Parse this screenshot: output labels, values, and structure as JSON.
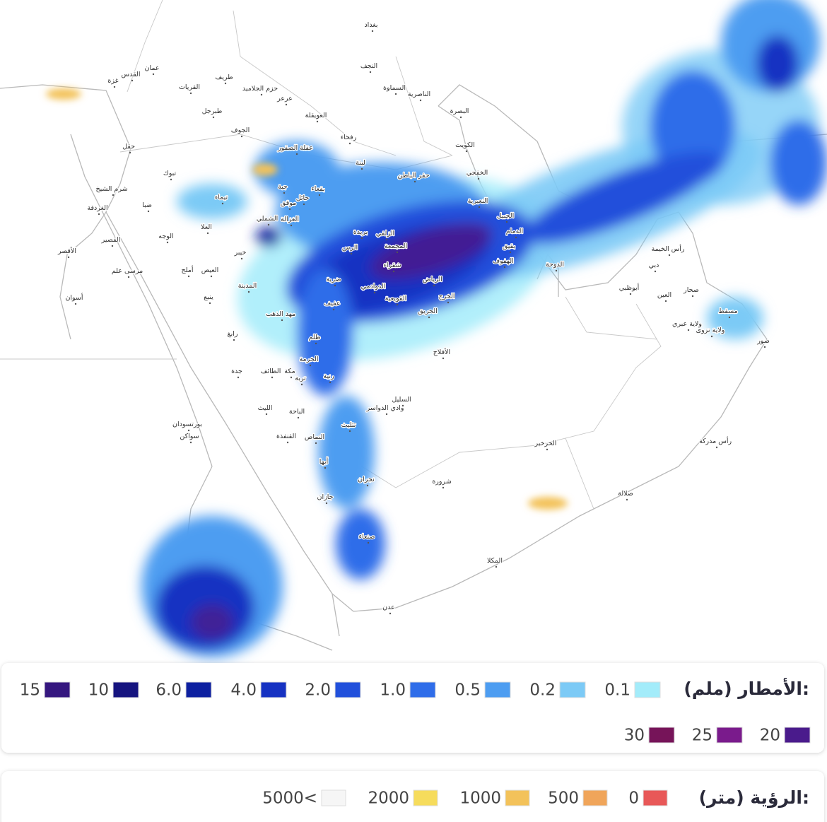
{
  "map": {
    "labels": [
      "بغداد",
      "النجف",
      "السماوة",
      "الناصرية",
      "البصرة",
      "الكويت",
      "الخفجي",
      "النعيرية",
      "الجبيل",
      "الدمام",
      "بقيق",
      "الهفوف",
      "الدوحة",
      "أبوظبي",
      "دبي",
      "رأس الخيمة",
      "صحار",
      "العين",
      "مسقط",
      "ولاية عبري",
      "ولاية نزوى",
      "صور",
      "رأس مدركة",
      "صلالة",
      "الخرخير",
      "شرورة",
      "نجران",
      "صنعاء",
      "المكلا",
      "عدن",
      "جازان",
      "أبها",
      "النماص",
      "القنفذة",
      "الباحة",
      "الليث",
      "تثليث",
      "السليل",
      "وادي الدواسر",
      "الأفلاج",
      "الخرج",
      "الحريق",
      "الرياض",
      "القويعية",
      "الدوادمي",
      "عفيف",
      "ظلم",
      "الخرمة",
      "رنية",
      "تربة",
      "الطائف",
      "مكة",
      "جدة",
      "رابغ",
      "المدينة",
      "ينبع",
      "العيص",
      "أملج",
      "العلا",
      "تيماء",
      "تبوك",
      "ضبا",
      "الوجه",
      "شرم الشيخ",
      "الغردقة",
      "القصير",
      "مرسى علم",
      "الأقصر",
      "أسوان",
      "بورتسودان",
      "سواكن",
      "عمان",
      "القدس",
      "غزة",
      "حقل",
      "طريف",
      "القريات",
      "حزم الجلاميد",
      "عرعر",
      "طبرجل",
      "الجوف",
      "العويقلة",
      "رفحاء",
      "عقلة الصقور",
      "لينة",
      "حفر الباطن",
      "بقعاء",
      "جبة",
      "حائل",
      "موقق",
      "الغزالة",
      "الشملي",
      "خيبر",
      "الزلفي",
      "بريدة",
      "المجمعة",
      "شقراء",
      "الرس",
      "ضرية",
      "مهد الذهب"
    ]
  },
  "legend": {
    "rain": {
      "title": "الأمطار (ملم):",
      "items": [
        {
          "label": "0.1",
          "color": "#a3ecfa"
        },
        {
          "label": "0.2",
          "color": "#7ccaf6"
        },
        {
          "label": "0.5",
          "color": "#4d9df1"
        },
        {
          "label": "1.0",
          "color": "#2f6de9"
        },
        {
          "label": "2.0",
          "color": "#2150db"
        },
        {
          "label": "4.0",
          "color": "#1632c2"
        },
        {
          "label": "6.0",
          "color": "#0d20a0"
        },
        {
          "label": "10",
          "color": "#16147f"
        },
        {
          "label": "15",
          "color": "#35177f"
        },
        {
          "label": "20",
          "color": "#4a1b8c"
        },
        {
          "label": "25",
          "color": "#7a1b8c"
        },
        {
          "label": "30",
          "color": "#761459"
        }
      ]
    },
    "visibility": {
      "title": "الرؤية (متر):",
      "items": [
        {
          "label": "0",
          "color": "#e85858"
        },
        {
          "label": "500",
          "color": "#f0a55a"
        },
        {
          "label": "1000",
          "color": "#f3c25a"
        },
        {
          "label": "2000",
          "color": "#f6dc5c"
        },
        {
          "label": "5000<",
          "color": "#f6f6f6"
        }
      ]
    }
  }
}
